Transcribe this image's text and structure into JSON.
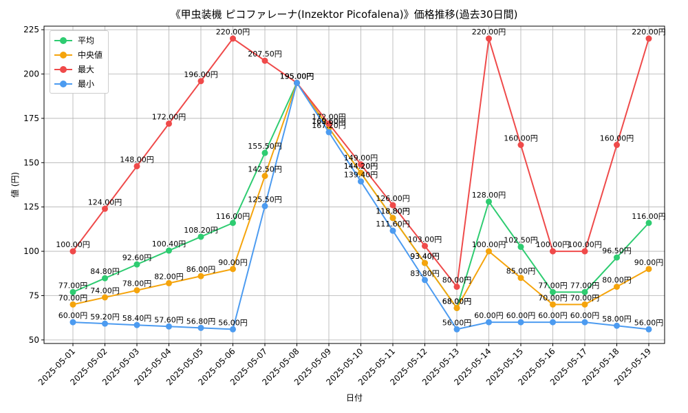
{
  "chart_data": {
    "type": "line",
    "title": "《甲虫装機 ピコファレーナ(Inzektor Picofalena)》価格推移(過去30日間)",
    "xlabel": "日付",
    "ylabel": "値 (円)",
    "ylim": [
      48,
      227
    ],
    "yticks": [
      50,
      75,
      100,
      125,
      150,
      175,
      200,
      225
    ],
    "grid": true,
    "legend_position": "top-left",
    "value_suffix": "円",
    "categories": [
      "2025-05-01",
      "2025-05-02",
      "2025-05-03",
      "2025-05-04",
      "2025-05-05",
      "2025-05-06",
      "2025-05-07",
      "2025-05-08",
      "2025-05-09",
      "2025-05-10",
      "2025-05-11",
      "2025-05-12",
      "2025-05-13",
      "2025-05-14",
      "2025-05-15",
      "2025-05-16",
      "2025-05-17",
      "2025-05-18",
      "2025-05-19"
    ],
    "series": [
      {
        "name": "平均",
        "color": "#2ecc71",
        "values": [
          77.0,
          84.8,
          92.6,
          100.4,
          108.2,
          116.0,
          155.5,
          195.0,
          169.6,
          144.2,
          118.8,
          93.4,
          68.0,
          128.0,
          102.5,
          77.0,
          77.0,
          96.5,
          116.0
        ]
      },
      {
        "name": "中央値",
        "color": "#f5a40c",
        "values": [
          70.0,
          74.0,
          78.0,
          82.0,
          86.0,
          90.0,
          142.5,
          195.0,
          169.6,
          144.2,
          118.8,
          93.4,
          68.0,
          100.0,
          85.0,
          70.0,
          70.0,
          80.0,
          90.0
        ]
      },
      {
        "name": "最大",
        "color": "#ef4a4a",
        "values": [
          100.0,
          124.0,
          148.0,
          172.0,
          196.0,
          220.0,
          207.5,
          195.0,
          172.0,
          149.0,
          126.0,
          103.0,
          80.0,
          220.0,
          160.0,
          100.0,
          100.0,
          160.0,
          220.0
        ]
      },
      {
        "name": "最小",
        "color": "#4c9bf0",
        "values": [
          60.0,
          59.2,
          58.4,
          57.6,
          56.8,
          56.0,
          125.5,
          195.0,
          167.2,
          139.4,
          111.6,
          83.8,
          56.0,
          60.0,
          60.0,
          60.0,
          60.0,
          58.0,
          56.0
        ]
      }
    ]
  }
}
